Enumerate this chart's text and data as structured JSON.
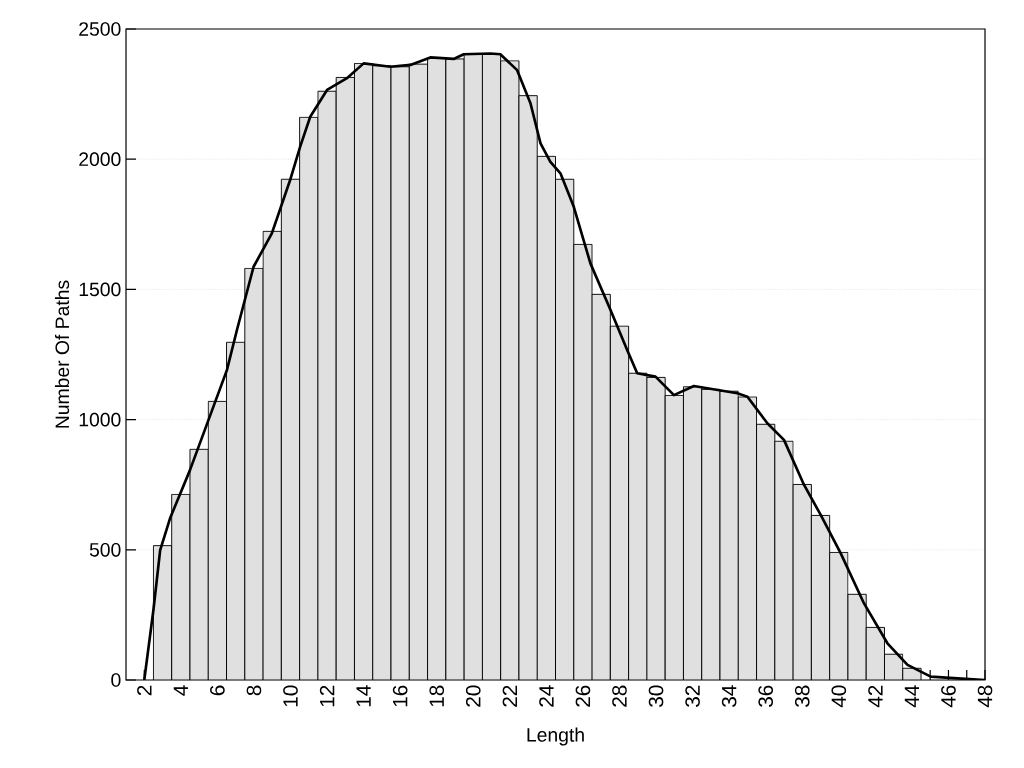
{
  "chart_data": {
    "type": "histogram",
    "xlabel": "Length",
    "ylabel": "Number Of Paths",
    "xlim": [
      1,
      48
    ],
    "ylim": [
      0,
      2500
    ],
    "xticks": [
      2,
      {
        "value": 3,
        "label": null
      },
      4,
      {
        "value": 5,
        "label": null
      },
      6,
      {
        "value": 7,
        "label": null
      },
      8,
      {
        "value": 9,
        "label": null
      },
      10,
      {
        "value": 11,
        "label": null
      },
      12,
      {
        "value": 13,
        "label": null
      },
      14,
      {
        "value": 15,
        "label": null
      },
      16,
      {
        "value": 17,
        "label": null
      },
      18,
      {
        "value": 19,
        "label": null
      },
      20,
      {
        "value": 21,
        "label": null
      },
      22,
      {
        "value": 23,
        "label": null
      },
      24,
      {
        "value": 25,
        "label": null
      },
      26,
      {
        "value": 27,
        "label": null
      },
      28,
      {
        "value": 29,
        "label": null
      },
      30,
      {
        "value": 31,
        "label": null
      },
      32,
      {
        "value": 33,
        "label": null
      },
      34,
      {
        "value": 35,
        "label": null
      },
      36,
      {
        "value": 37,
        "label": null
      },
      38,
      {
        "value": 39,
        "label": null
      },
      40,
      {
        "value": 41,
        "label": null
      },
      42,
      {
        "value": 43,
        "label": null
      },
      44,
      {
        "value": 45,
        "label": null
      },
      46,
      {
        "value": 47,
        "label": null
      },
      48
    ],
    "yticks": [
      0,
      500,
      1000,
      1500,
      2000,
      2500
    ],
    "grid": "y",
    "series": [
      {
        "color": "#e0e0e0",
        "bins": [
          2.5,
          3.5,
          4.5,
          5.5,
          6.5,
          7.5,
          8.5,
          9.5,
          10.5,
          11.5,
          12.5,
          13.5,
          14.5,
          15.5,
          16.5,
          17.5,
          18.5,
          19.5,
          20.5,
          21.5,
          22.5,
          23.5,
          24.5,
          25.5,
          26.5,
          27.5,
          28.5,
          29.5,
          30.5,
          31.5,
          32.5,
          33.5,
          34.5,
          35.5,
          36.5,
          37.5,
          38.5,
          39.5,
          40.5,
          41.5,
          42.5,
          43.5,
          44.5
        ],
        "values": [
          516,
          713,
          886,
          1070,
          1297,
          1581,
          1723,
          1923,
          2161,
          2261,
          2314,
          2368,
          2359,
          2355,
          2365,
          2388,
          2385,
          2406,
          2406,
          2378,
          2244,
          2011,
          1923,
          1673,
          1481,
          1359,
          1178,
          1162,
          1093,
          1126,
          1116,
          1109,
          1087,
          982,
          917,
          751,
          632,
          490,
          329,
          202,
          99,
          45
        ]
      },
      {
        "type": "line",
        "color": "#000000",
        "line_style": "solid",
        "marker": "none",
        "x": [
          2.0,
          2.5,
          2.87,
          3.41,
          4.5,
          5.51,
          6.52,
          7.07,
          7.98,
          8.98,
          9.98,
          10.53,
          11.08,
          12.0,
          13.09,
          14.0,
          15.46,
          16.56,
          17.65,
          18.93,
          19.48,
          20.94,
          21.48,
          22.4,
          23.13,
          23.68,
          24.22,
          24.77,
          25.5,
          26.41,
          27.51,
          28.42,
          28.97,
          29.97,
          30.98,
          32.07,
          34.45,
          35.0,
          36.09,
          37.0,
          38.1,
          39.01,
          40.1,
          41.38,
          42.66,
          43.76,
          45.03,
          46.5,
          48.0
        ],
        "values": [
          0,
          269,
          499,
          621,
          806,
          998,
          1190,
          1344,
          1587,
          1715,
          1920,
          2048,
          2163,
          2266,
          2311,
          2368,
          2355,
          2362,
          2391,
          2385,
          2403,
          2406,
          2403,
          2342,
          2215,
          2061,
          1990,
          1946,
          1817,
          1600,
          1421,
          1267,
          1178,
          1165,
          1094,
          1129,
          1101,
          1088,
          986,
          922,
          749,
          634,
          487,
          294,
          141,
          58,
          13,
          6,
          0
        ]
      }
    ]
  }
}
